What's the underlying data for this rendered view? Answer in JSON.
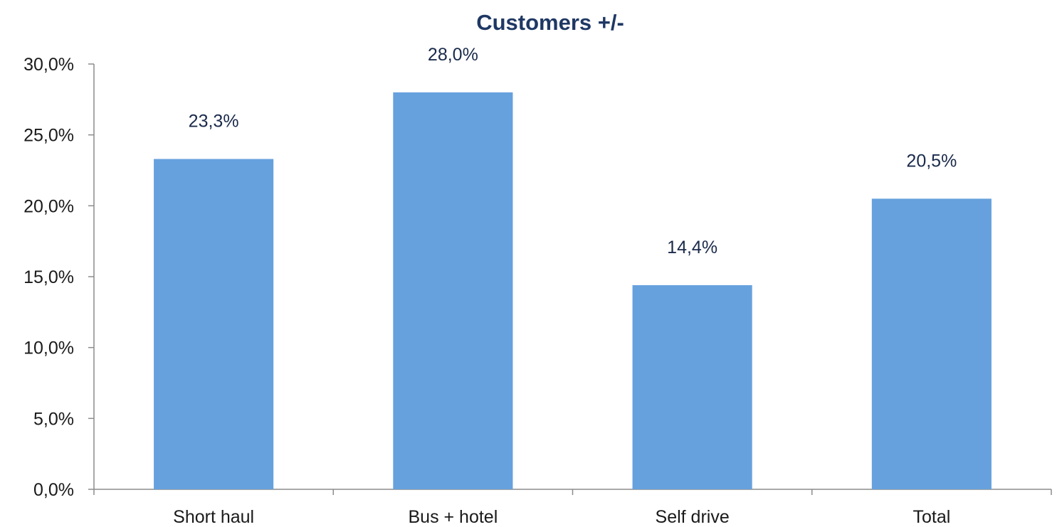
{
  "chart_data": {
    "type": "bar",
    "title": "Customers +/-",
    "xlabel": "",
    "ylabel": "",
    "categories": [
      "Short haul",
      "Bus + hotel",
      "Self drive",
      "Total"
    ],
    "series": [
      {
        "values": [
          23.3,
          28.0,
          14.4,
          20.5
        ]
      }
    ],
    "data_labels": [
      "23,3%",
      "28,0%",
      "14,4%",
      "20,5%"
    ],
    "ylim": [
      0,
      30
    ],
    "y_ticks": [
      0,
      5,
      10,
      15,
      20,
      25,
      30
    ],
    "y_tick_labels": [
      "0,0%",
      "5,0%",
      "10,0%",
      "15,0%",
      "20,0%",
      "25,0%",
      "30,0%"
    ],
    "grid": false,
    "legend": "none",
    "colors": {
      "bar": "#66a1dd",
      "title": "#1f3864",
      "axis": "#8c8c8c"
    }
  }
}
